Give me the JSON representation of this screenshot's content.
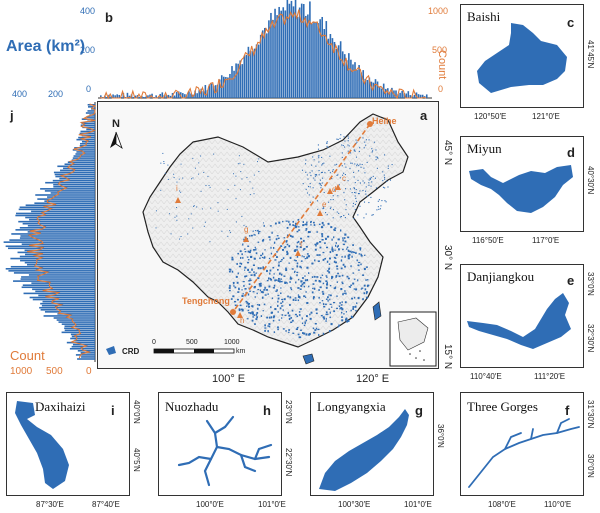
{
  "colors": {
    "water": "#2f6db5",
    "count": "#e07b3a",
    "land": "#ececec",
    "border": "#222222"
  },
  "panel_a": {
    "letter": "a",
    "north": "N",
    "legend_label": "CRD",
    "scalebar": [
      "0",
      "500",
      "1000"
    ],
    "scalebar_unit": "km",
    "line_endpoints": [
      "Heihe",
      "Tengchong"
    ],
    "lat_ticks": [
      "45° N",
      "30° N",
      "15° N"
    ],
    "lon_ticks": [
      "100° E",
      "120° E"
    ],
    "site_letters": [
      "c",
      "d",
      "e",
      "f",
      "g",
      "h",
      "i"
    ]
  },
  "panel_b": {
    "letter": "b",
    "ylabel_left": "Area (km²)",
    "ylabel_right": "Count",
    "left_ticks": [
      "400",
      "200",
      "0"
    ],
    "right_ticks": [
      "1000",
      "500",
      "0"
    ],
    "bottom_ticks": [
      "400",
      "200"
    ]
  },
  "panel_j": {
    "letter": "j",
    "xlabel": "Count",
    "x_ticks": [
      "1000",
      "500",
      "0"
    ]
  },
  "insets": [
    {
      "id": "c",
      "name": "Baishi",
      "x_ticks": [
        "120°50′E",
        "121°0′E"
      ],
      "y_tick": "41°45′N"
    },
    {
      "id": "d",
      "name": "Miyun",
      "x_ticks": [
        "116°50′E",
        "117°0′E"
      ],
      "y_tick": "40°30′N"
    },
    {
      "id": "e",
      "name": "Danjiangkou",
      "x_ticks": [
        "110°40′E",
        "111°20′E"
      ],
      "y_ticks": [
        "33°0′N",
        "32°30′N"
      ]
    },
    {
      "id": "f",
      "name": "Three Gorges",
      "x_ticks": [
        "108°0′E",
        "110°0′E"
      ],
      "y_ticks": [
        "31°30′N",
        "30°0′N"
      ]
    },
    {
      "id": "g",
      "name": "Longyangxia",
      "x_ticks": [
        "100°30′E",
        "101°0′E"
      ],
      "y_tick": "36°0′N"
    },
    {
      "id": "h",
      "name": "Nuozhadu",
      "x_ticks": [
        "100°0′E",
        "101°0′E"
      ],
      "y_ticks": [
        "23°0′N",
        "22°30′N"
      ]
    },
    {
      "id": "i",
      "name": "Daxihaizi",
      "x_ticks": [
        "87°30′E",
        "87°40′E"
      ],
      "y_ticks": [
        "40°0′N",
        "40°5′N"
      ]
    }
  ]
}
